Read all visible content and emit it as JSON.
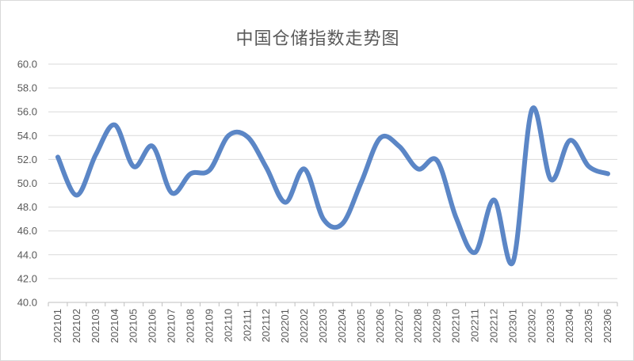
{
  "chart_data": {
    "type": "line",
    "title": "中国仓储指数走势图",
    "xlabel": "",
    "ylabel": "",
    "x": [
      "202101",
      "202102",
      "202103",
      "202104",
      "202105",
      "202106",
      "202107",
      "202108",
      "202109",
      "202110",
      "202111",
      "202112",
      "202201",
      "202202",
      "202203",
      "202204",
      "202205",
      "202206",
      "202207",
      "202208",
      "202209",
      "202210",
      "202211",
      "202212",
      "202301",
      "202302",
      "202303",
      "202304",
      "202305",
      "202306"
    ],
    "series": [
      {
        "name": "",
        "values": [
          52.2,
          49.0,
          52.4,
          54.9,
          51.4,
          53.1,
          49.2,
          50.8,
          51.1,
          54.0,
          53.9,
          51.3,
          48.4,
          51.2,
          47.0,
          46.6,
          50.1,
          53.8,
          53.1,
          51.2,
          51.9,
          47.1,
          44.2,
          48.6,
          43.4,
          56.2,
          50.3,
          53.6,
          51.4,
          50.8
        ]
      }
    ],
    "ylim": [
      40.0,
      60.0
    ],
    "ytick_step": 2.0,
    "ytick_labels": [
      "40.0",
      "42.0",
      "44.0",
      "46.0",
      "48.0",
      "50.0",
      "52.0",
      "54.0",
      "56.0",
      "58.0",
      "60.0"
    ],
    "grid": true,
    "legend": "none",
    "line_color": "#5B86C6",
    "grid_color": "#d9d9d9",
    "axis_color": "#bfbfbf",
    "text_color": "#595959"
  }
}
